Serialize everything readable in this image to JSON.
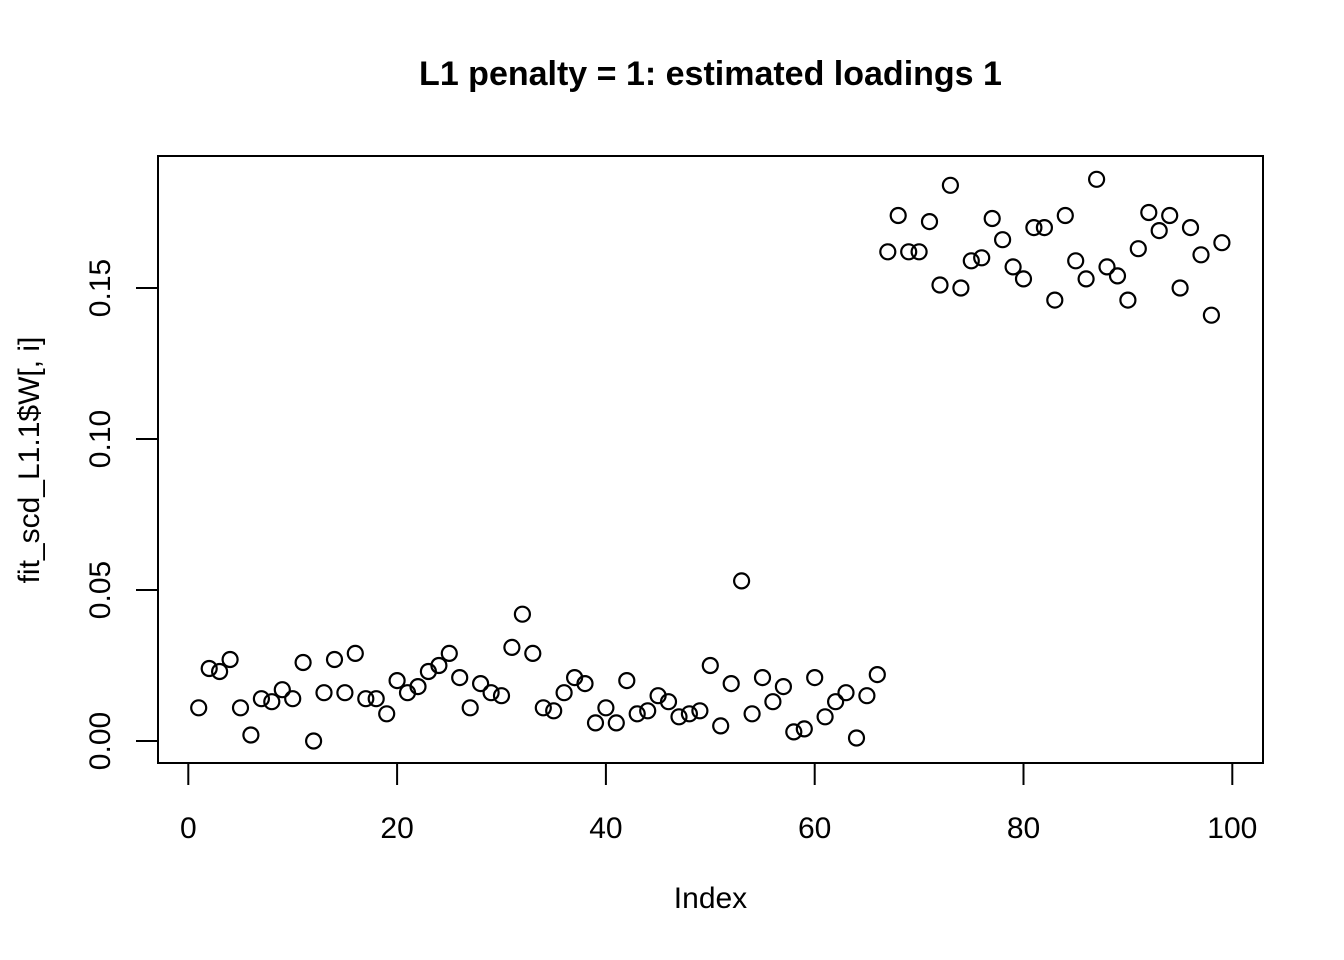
{
  "figure": {
    "background_color": "#ffffff",
    "foreground_color": "#000000"
  },
  "chart_data": {
    "type": "scatter",
    "title": "L1 penalty = 1: estimated loadings 1",
    "xlabel": "Index",
    "ylabel": "fit_scd_L1.1$W[, i]",
    "marker": "open-circle",
    "marker_color": "#000000",
    "grid": false,
    "legend": null,
    "xlim": [
      -4,
      104
    ],
    "ylim": [
      -0.007,
      0.194
    ],
    "x_tick_labels": [
      "0",
      "20",
      "40",
      "60",
      "80",
      "100"
    ],
    "x_tick_values": [
      0,
      20,
      40,
      60,
      80,
      100
    ],
    "y_tick_labels": [
      "0.00",
      "0.05",
      "0.10",
      "0.15"
    ],
    "y_tick_values": [
      0.0,
      0.05,
      0.1,
      0.15
    ],
    "x": [
      1,
      2,
      3,
      4,
      5,
      6,
      7,
      8,
      9,
      10,
      11,
      12,
      13,
      14,
      15,
      16,
      17,
      18,
      19,
      20,
      21,
      22,
      23,
      24,
      25,
      26,
      27,
      28,
      29,
      30,
      31,
      32,
      33,
      34,
      35,
      36,
      37,
      38,
      39,
      40,
      41,
      42,
      43,
      44,
      45,
      46,
      47,
      48,
      49,
      50,
      51,
      52,
      53,
      54,
      55,
      56,
      57,
      58,
      59,
      60,
      61,
      62,
      63,
      64,
      65,
      66,
      67,
      68,
      69,
      70,
      71,
      72,
      73,
      74,
      75,
      76,
      77,
      78,
      79,
      80,
      81,
      82,
      83,
      84,
      85,
      86,
      87,
      88,
      89,
      90,
      91,
      92,
      93,
      94,
      95,
      96,
      97,
      98,
      99
    ],
    "y": [
      0.011,
      0.024,
      0.023,
      0.027,
      0.011,
      0.002,
      0.014,
      0.013,
      0.017,
      0.014,
      0.026,
      0.0,
      0.016,
      0.027,
      0.016,
      0.029,
      0.014,
      0.014,
      0.009,
      0.02,
      0.016,
      0.018,
      0.023,
      0.025,
      0.029,
      0.021,
      0.011,
      0.019,
      0.016,
      0.015,
      0.031,
      0.042,
      0.029,
      0.011,
      0.01,
      0.016,
      0.021,
      0.019,
      0.006,
      0.011,
      0.006,
      0.02,
      0.009,
      0.01,
      0.015,
      0.013,
      0.008,
      0.009,
      0.01,
      0.025,
      0.005,
      0.019,
      0.053,
      0.009,
      0.021,
      0.013,
      0.018,
      0.003,
      0.004,
      0.021,
      0.008,
      0.013,
      0.016,
      0.001,
      0.015,
      0.022,
      0.162,
      0.174,
      0.162,
      0.162,
      0.172,
      0.151,
      0.184,
      0.15,
      0.159,
      0.16,
      0.173,
      0.166,
      0.157,
      0.153,
      0.17,
      0.17,
      0.146,
      0.174,
      0.159,
      0.153,
      0.186,
      0.157,
      0.154,
      0.146,
      0.163,
      0.175,
      0.169,
      0.174,
      0.15,
      0.17,
      0.161,
      0.141,
      0.165
    ]
  }
}
